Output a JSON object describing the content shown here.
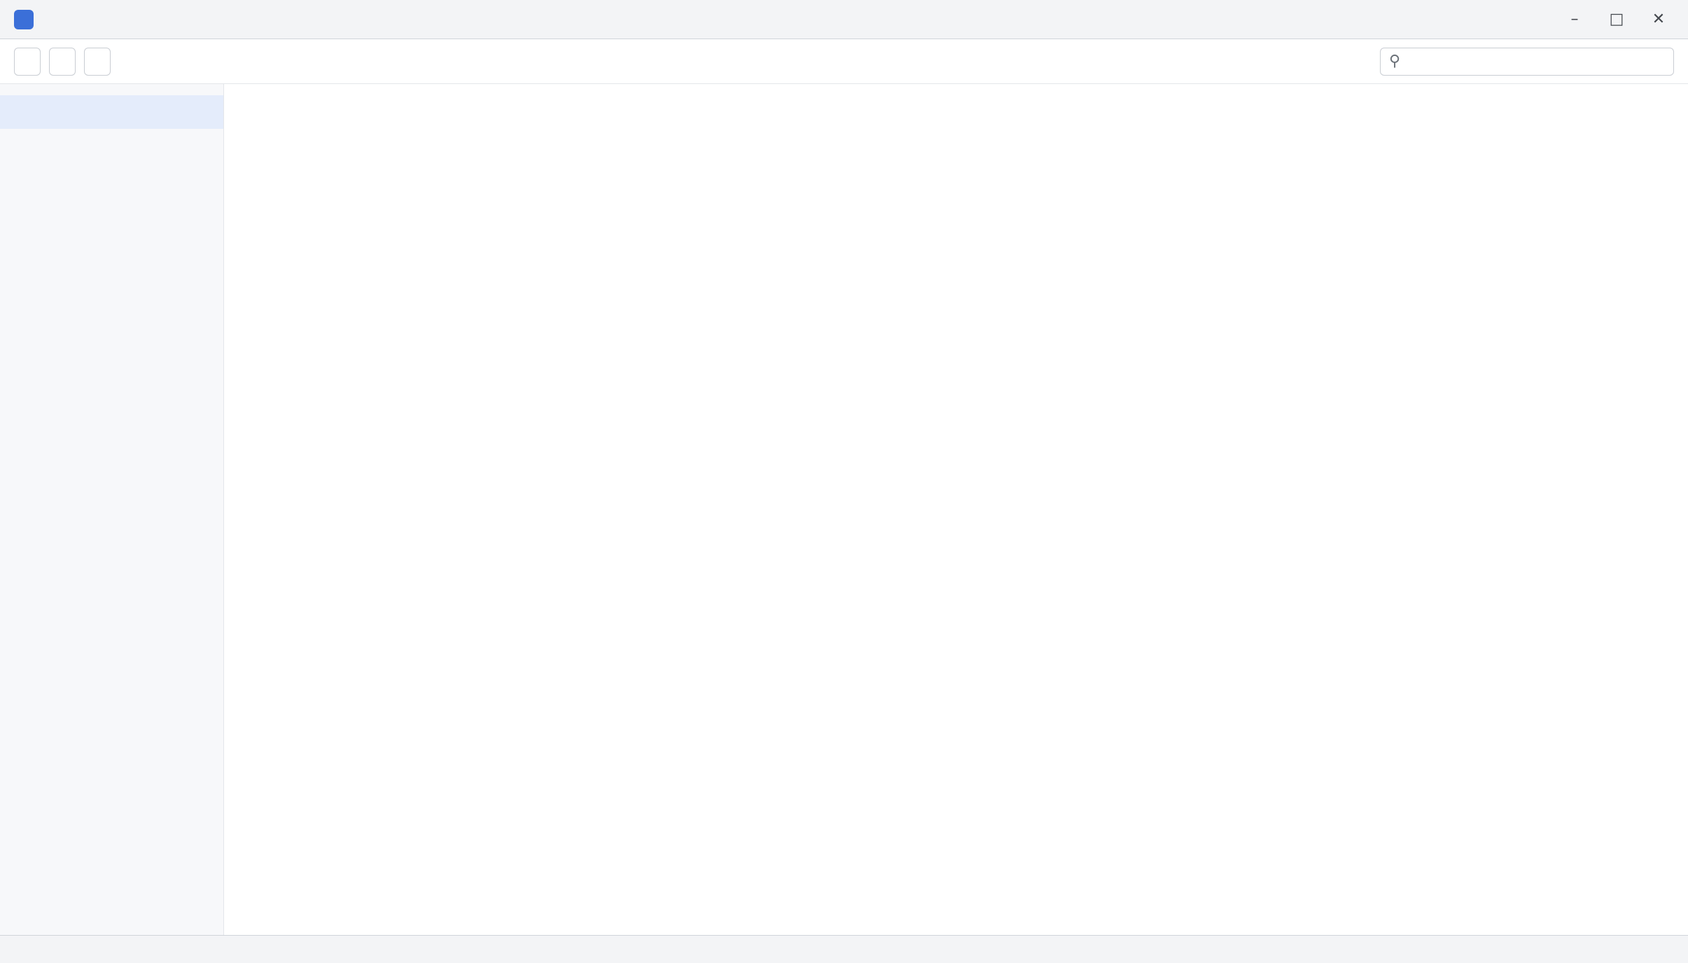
{
  "window": {
    "title": ""
  },
  "toolbar": {
    "buttons": [
      "",
      "",
      ""
    ]
  },
  "search": {
    "value": "",
    "placeholder": ""
  },
  "sidebar": {
    "items": [
      {
        "label": ""
      },
      {
        "label": ""
      },
      {
        "label": ""
      },
      {
        "label": ""
      }
    ]
  },
  "main": {
    "heading": "",
    "body": ""
  },
  "statusbar": {
    "text": ""
  }
}
